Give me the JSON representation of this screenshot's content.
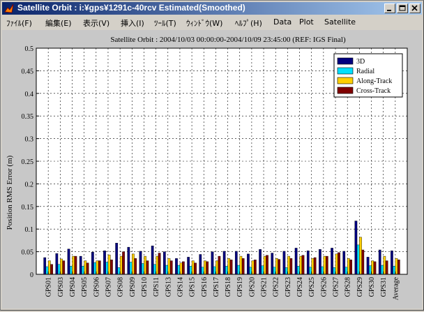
{
  "window": {
    "title": "Satellite Orbit : i:¥gps¥1291c-40rcv Estimated(Smoothed)"
  },
  "menu": [
    {
      "id": "file",
      "label": "ﾌｧｲﾙ(F)"
    },
    {
      "id": "edit",
      "label": "編集(E)"
    },
    {
      "id": "view",
      "label": "表示(V)"
    },
    {
      "id": "insert",
      "label": "挿入(I)"
    },
    {
      "id": "tools",
      "label": "ﾂｰﾙ(T)"
    },
    {
      "id": "window",
      "label": "ｳｨﾝﾄﾞｳ(W)"
    },
    {
      "id": "help",
      "label": "ﾍﾙﾌﾟ(H)"
    },
    {
      "id": "data",
      "label": "Data"
    },
    {
      "id": "plot",
      "label": "Plot"
    },
    {
      "id": "satellite",
      "label": "Satellite"
    }
  ],
  "chart_data": {
    "type": "bar",
    "title": "Satellite Orbit : 2004/10/03 00:00:00-2004/10/09 23:45:00 (REF: IGS Final)",
    "xlabel": "",
    "ylabel": "Position RMS Error (m)",
    "ylim": [
      0,
      0.5
    ],
    "yticks": [
      "0",
      "0.05",
      "0.1",
      "0.15",
      "0.2",
      "0.25",
      "0.3",
      "0.35",
      "0.4",
      "0.45",
      "0.5"
    ],
    "grid": true,
    "legend_position": "top-right",
    "categories": [
      "GPS01",
      "GPS03",
      "GPS04",
      "GPS05",
      "GPS06",
      "GPS07",
      "GPS08",
      "GPS09",
      "GPS10",
      "GPS11",
      "GPS13",
      "GPS14",
      "GPS15",
      "GPS16",
      "GPS17",
      "GPS18",
      "GPS19",
      "GPS20",
      "GPS21",
      "GPS22",
      "GPS23",
      "GPS24",
      "GPS25",
      "GPS26",
      "GPS27",
      "GPS28",
      "GPS29",
      "GPS30",
      "GPS31",
      "Average"
    ],
    "series": [
      {
        "name": "3D",
        "color": "#000080",
        "values": [
          0.037,
          0.046,
          0.056,
          0.04,
          0.049,
          0.052,
          0.069,
          0.06,
          0.051,
          0.063,
          0.05,
          0.035,
          0.038,
          0.044,
          0.05,
          0.051,
          0.051,
          0.045,
          0.055,
          0.047,
          0.051,
          0.058,
          0.052,
          0.055,
          0.058,
          0.051,
          0.118,
          0.038,
          0.054,
          0.052
        ]
      },
      {
        "name": "Radial",
        "color": "#00e0ff",
        "values": [
          0.017,
          0.022,
          0.018,
          0.018,
          0.026,
          0.027,
          0.015,
          0.027,
          0.024,
          0.022,
          0.02,
          0.02,
          0.018,
          0.016,
          0.017,
          0.018,
          0.02,
          0.016,
          0.019,
          0.016,
          0.015,
          0.018,
          0.016,
          0.017,
          0.015,
          0.016,
          0.065,
          0.019,
          0.02,
          0.018
        ]
      },
      {
        "name": "Along-Track",
        "color": "#ffd000",
        "values": [
          0.03,
          0.034,
          0.04,
          0.03,
          0.03,
          0.043,
          0.04,
          0.045,
          0.04,
          0.04,
          0.035,
          0.025,
          0.03,
          0.03,
          0.03,
          0.035,
          0.04,
          0.03,
          0.04,
          0.035,
          0.04,
          0.04,
          0.035,
          0.04,
          0.045,
          0.035,
          0.082,
          0.03,
          0.04,
          0.035
        ]
      },
      {
        "name": "Cross-Track",
        "color": "#800000",
        "values": [
          0.022,
          0.03,
          0.04,
          0.025,
          0.03,
          0.032,
          0.05,
          0.035,
          0.03,
          0.047,
          0.03,
          0.028,
          0.025,
          0.028,
          0.04,
          0.032,
          0.035,
          0.032,
          0.042,
          0.033,
          0.035,
          0.042,
          0.037,
          0.04,
          0.048,
          0.032,
          0.054,
          0.028,
          0.03,
          0.032
        ]
      }
    ]
  }
}
